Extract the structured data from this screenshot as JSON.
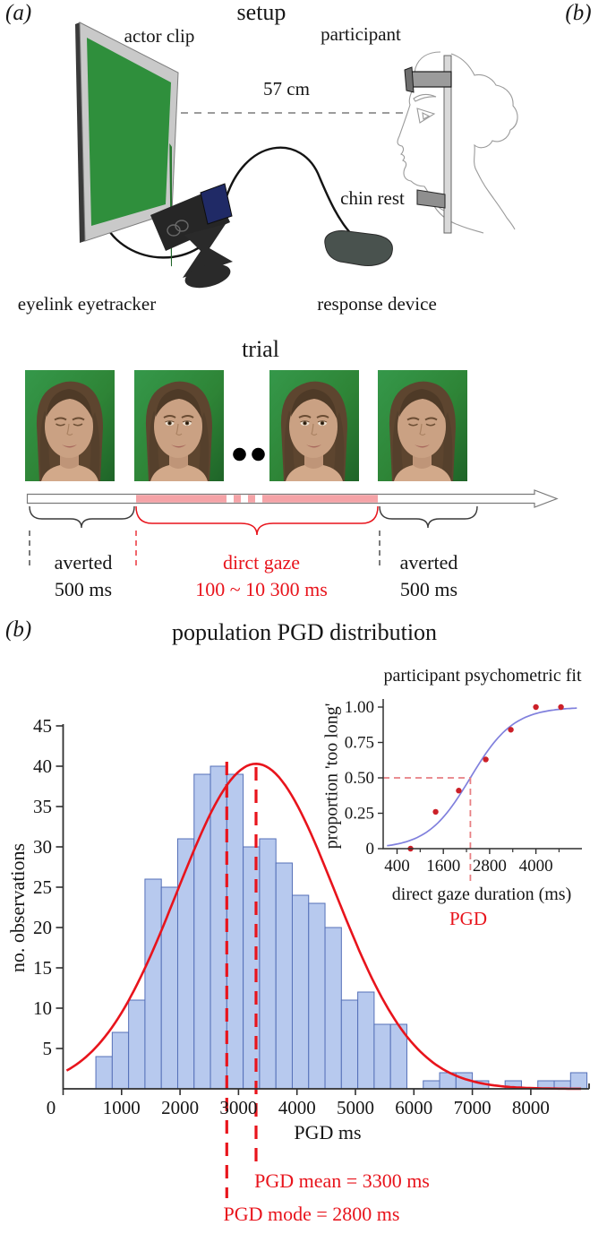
{
  "panel_a": {
    "label": "(a)",
    "title": "setup",
    "corner_label": "(b)",
    "actor_clip": "actor clip",
    "participant": "participant",
    "distance": "57 cm",
    "chin_rest": "chin rest",
    "eyetracker": "eyelink eyetracker",
    "response_device": "response device"
  },
  "trial": {
    "title": "trial",
    "frames": [
      {
        "gaze": "averted"
      },
      {
        "gaze": "direct"
      },
      {
        "gaze": "direct"
      },
      {
        "gaze": "averted"
      }
    ],
    "phase_labels": [
      {
        "line1": "averted",
        "line2": "500 ms"
      },
      {
        "line1": "dirct gaze",
        "line2": "100 ~ 10 300 ms"
      },
      {
        "line1": "averted",
        "line2": "500 ms"
      }
    ],
    "pink_color": "#f5a3a7"
  },
  "panel_b": {
    "label": "(b)",
    "title": "population PGD distribution"
  },
  "chart_data": [
    {
      "type": "bar",
      "title": "population PGD distribution",
      "xlabel": "PGD ms",
      "ylabel": "no. observations",
      "bin_start_ms": 560,
      "bin_width_ms": 280,
      "counts": [
        4,
        7,
        11,
        26,
        25,
        31,
        39,
        40,
        39,
        30,
        31,
        28,
        24,
        23,
        20,
        11,
        12,
        8,
        8,
        0,
        1,
        2,
        2,
        1,
        0,
        1,
        0,
        1,
        1,
        2
      ],
      "xticks": [
        0,
        1000,
        2000,
        3000,
        4000,
        5000,
        6000,
        7000,
        8000
      ],
      "yticks": [
        5,
        10,
        15,
        20,
        25,
        30,
        35,
        40,
        45
      ],
      "xlim": [
        0,
        9000
      ],
      "ylim": [
        0,
        45
      ],
      "normal_fit": {
        "mean": 3300,
        "sigma": 1350,
        "peak": 40.3
      },
      "annotations": {
        "mean_ms": 3300,
        "mode_ms": 2800,
        "mean_label": "PGD mean = 3300 ms",
        "mode_label": "PGD mode = 2800 ms"
      },
      "bar_fill": "#b7c9ee",
      "bar_stroke": "#5570b8",
      "curve_color": "#e8141c"
    },
    {
      "type": "scatter",
      "title": "participant psychometric fit",
      "xlabel": "direct gaze duration (ms)",
      "xlabel2": "PGD",
      "ylabel": "proportion 'too long'",
      "points": {
        "x": [
          750,
          1400,
          2000,
          2700,
          3350,
          4000,
          4650
        ],
        "y": [
          0,
          0.26,
          0.41,
          0.63,
          0.84,
          1.0,
          1.0
        ]
      },
      "fit": {
        "type": "logistic",
        "pse_ms": 2300,
        "scale_ms": 560
      },
      "xticks": [
        400,
        1600,
        2800,
        4000
      ],
      "xticks_minor": [
        1000,
        2200,
        3400,
        4600
      ],
      "yticks": [
        {
          "v": 0,
          "label": "0"
        },
        {
          "v": 0.25,
          "label": "0.25"
        },
        {
          "v": 0.5,
          "label": "0.50"
        },
        {
          "v": 0.75,
          "label": "0.75"
        },
        {
          "v": 1,
          "label": "1.00"
        }
      ],
      "guide": {
        "y": 0.5,
        "x_ms": 2300
      },
      "point_color": "#cc2028",
      "curve_color": "#8080dd",
      "guide_color": "#e87f82"
    }
  ],
  "colors": {
    "accent_red": "#e8141c",
    "screen_green": "#2f8f3c",
    "gray_hw": "#9b9b9b"
  }
}
